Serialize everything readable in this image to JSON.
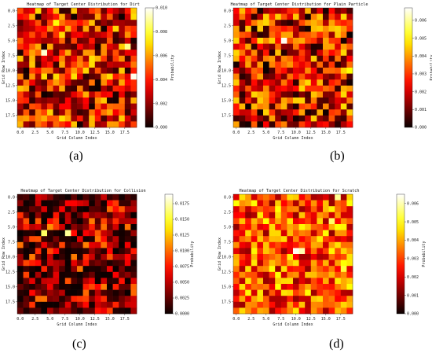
{
  "chart_data": [
    {
      "type": "heatmap",
      "panel_label": "(a)",
      "title": "Heatmap of Target Center Distribution for Dirt",
      "xlabel": "Grid Column Index",
      "ylabel": "Grid Row Index",
      "colorbar_label": "Probability",
      "rows": 20,
      "cols": 20,
      "x_ticks": [
        "0.0",
        "2.5",
        "5.0",
        "7.5",
        "10.0",
        "12.5",
        "15.0",
        "17.5"
      ],
      "y_ticks": [
        "0.0",
        "2.5",
        "5.0",
        "7.5",
        "10.0",
        "12.5",
        "15.0",
        "17.5"
      ],
      "colorbar_ticks": [
        "0.000",
        "0.002",
        "0.004",
        "0.006",
        "0.008",
        "0.010"
      ],
      "vmin": 0,
      "vmax": 0.01,
      "colormap": "hot",
      "hotspots": [
        {
          "row": 7,
          "col": 4,
          "value": 0.0095
        },
        {
          "row": 6,
          "col": 18,
          "value": 0.0088
        },
        {
          "row": 11,
          "col": 19,
          "value": 0.0098
        },
        {
          "row": 2,
          "col": 6,
          "value": 0.0075
        },
        {
          "row": 8,
          "col": 12,
          "value": 0.007
        }
      ]
    },
    {
      "type": "heatmap",
      "panel_label": "(b)",
      "title": "Heatmap of Target Center Distribution for Plain Particle",
      "xlabel": "Grid Column Index",
      "ylabel": "Grid Row Index",
      "colorbar_label": "Probability",
      "rows": 20,
      "cols": 20,
      "x_ticks": [
        "0.0",
        "2.5",
        "5.0",
        "7.5",
        "10.0",
        "12.5",
        "15.0",
        "17.5"
      ],
      "y_ticks": [
        "0.0",
        "2.5",
        "5.0",
        "7.5",
        "10.0",
        "12.5",
        "15.0",
        "17.5"
      ],
      "colorbar_ticks": [
        "0.000",
        "0.001",
        "0.002",
        "0.003",
        "0.004",
        "0.005",
        "0.006"
      ],
      "vmin": 0,
      "vmax": 0.0067,
      "colormap": "hot",
      "hotspots": [
        {
          "row": 5,
          "col": 8,
          "value": 0.0066
        },
        {
          "row": 10,
          "col": 19,
          "value": 0.005
        },
        {
          "row": 3,
          "col": 14,
          "value": 0.0045
        }
      ]
    },
    {
      "type": "heatmap",
      "panel_label": "(c)",
      "title": "Heatmap of Target Center Distribution for Collision",
      "xlabel": "Grid Column Index",
      "ylabel": "Grid Row Index",
      "colorbar_label": "Probability",
      "rows": 20,
      "cols": 20,
      "x_ticks": [
        "0.0",
        "2.5",
        "5.0",
        "7.5",
        "10.0",
        "12.5",
        "15.0",
        "17.5"
      ],
      "y_ticks": [
        "0.0",
        "2.5",
        "5.0",
        "7.5",
        "10.0",
        "12.5",
        "15.0",
        "17.5"
      ],
      "colorbar_ticks": [
        "0.0000",
        "0.0025",
        "0.0050",
        "0.0075",
        "0.0100",
        "0.0125",
        "0.0150",
        "0.0175"
      ],
      "vmin": 0,
      "vmax": 0.019,
      "colormap": "hot",
      "hotspots": [
        {
          "row": 6,
          "col": 4,
          "value": 0.016
        },
        {
          "row": 6,
          "col": 8,
          "value": 0.017
        },
        {
          "row": 5,
          "col": 5,
          "value": 0.011
        },
        {
          "row": 8,
          "col": 11,
          "value": 0.0105
        },
        {
          "row": 7,
          "col": 2,
          "value": 0.009
        }
      ]
    },
    {
      "type": "heatmap",
      "panel_label": "(d)",
      "title": "Heatmap of Target Center Distribution for Scratch",
      "xlabel": "Grid Column Index",
      "ylabel": "Grid Row Index",
      "colorbar_label": "Probability",
      "rows": 20,
      "cols": 20,
      "x_ticks": [
        "0.0",
        "2.5",
        "5.0",
        "7.5",
        "10.0",
        "12.5",
        "15.0",
        "17.5"
      ],
      "y_ticks": [
        "0.0",
        "2.5",
        "5.0",
        "7.5",
        "10.0",
        "12.5",
        "15.0",
        "17.5"
      ],
      "colorbar_ticks": [
        "0.000",
        "0.001",
        "0.002",
        "0.003",
        "0.004",
        "0.005",
        "0.006"
      ],
      "vmin": 0,
      "vmax": 0.0065,
      "colormap": "hot",
      "hotspots": [
        {
          "row": 9,
          "col": 10,
          "value": 0.0064
        },
        {
          "row": 9,
          "col": 11,
          "value": 0.006
        },
        {
          "row": 0,
          "col": 17,
          "value": 0.0058
        },
        {
          "row": 4,
          "col": 16,
          "value": 0.0055
        },
        {
          "row": 12,
          "col": 18,
          "value": 0.0052
        }
      ]
    }
  ]
}
